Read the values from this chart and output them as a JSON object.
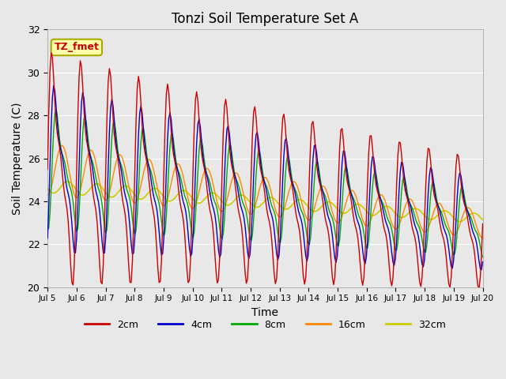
{
  "title": "Tonzi Soil Temperature Set A",
  "xlabel": "Time",
  "ylabel": "Soil Temperature (C)",
  "ylim": [
    20,
    32
  ],
  "yticks": [
    20,
    22,
    24,
    26,
    28,
    30,
    32
  ],
  "xtick_labels": [
    "Jul 5",
    "Jul 6",
    "Jul 7",
    "Jul 8",
    "Jul 9",
    "Jul 10",
    "Jul 11",
    "Jul 12",
    "Jul 13",
    "Jul 14",
    "Jul 15",
    "Jul 16",
    "Jul 17",
    "Jul 18",
    "Jul 19",
    "Jul 20"
  ],
  "colors": {
    "2cm": "#cc0000",
    "4cm": "#0000cc",
    "8cm": "#00aa00",
    "16cm": "#ff8800",
    "32cm": "#cccc00"
  },
  "annotation_text": "TZ_fmet",
  "annotation_bg": "#ffffaa",
  "annotation_border": "#aaaa00",
  "fig_bg": "#e8e8e8",
  "plot_bg": "#e8e8e8",
  "title_fontsize": 12,
  "axis_fontsize": 9,
  "legend_fontsize": 9
}
